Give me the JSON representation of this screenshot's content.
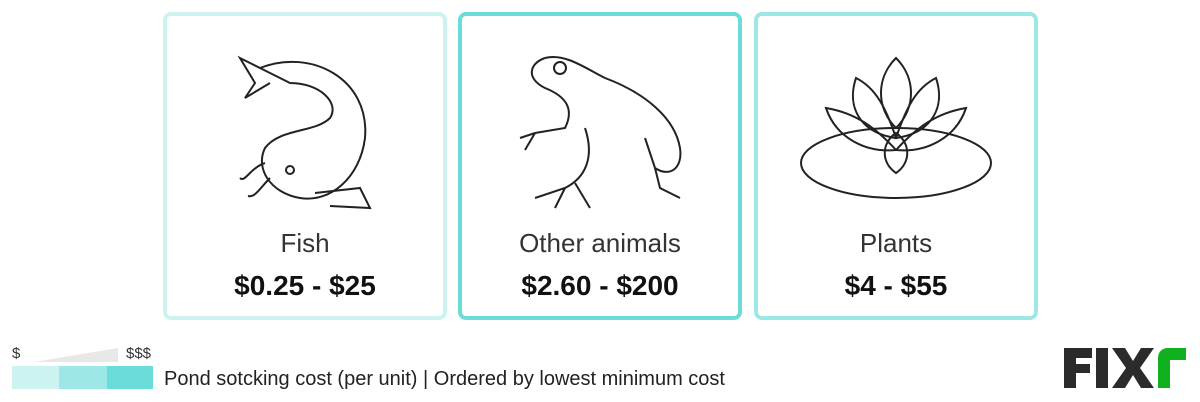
{
  "cards": [
    {
      "name": "Fish",
      "price": "$0.25 - $25",
      "icon": "koi-fish-icon",
      "border_color": "#cdf3f1"
    },
    {
      "name": "Other animals",
      "price": "$2.60 - $200",
      "icon": "frog-icon",
      "border_color": "#6adcd9"
    },
    {
      "name": "Plants",
      "price": "$4 - $55",
      "icon": "water-lily-icon",
      "border_color": "#9de8e6"
    }
  ],
  "legend": {
    "low": "$",
    "high": "$$$",
    "colors": [
      "#cdf3f1",
      "#9de8e6",
      "#6adcd9"
    ],
    "text": "Pond sotcking cost (per unit) | Ordered by lowest minimum cost"
  },
  "logo": {
    "text": "FIXR",
    "colors": [
      "#2b2b2b",
      "#11b01e"
    ]
  }
}
